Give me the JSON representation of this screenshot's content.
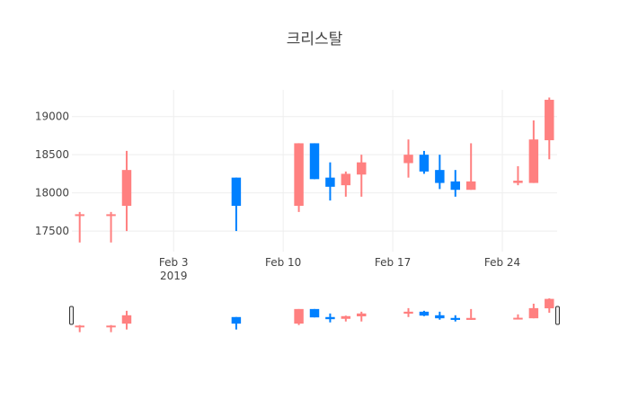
{
  "chart_data": {
    "type": "candlestick",
    "title": "크리스탈",
    "xlabel": "",
    "ylabel": "",
    "grid": true,
    "legend": "none",
    "x_ticks": [
      {
        "date": "2019-02-03",
        "label": "Feb 3",
        "sublabel": "2019"
      },
      {
        "date": "2019-02-10",
        "label": "Feb 10"
      },
      {
        "date": "2019-02-17",
        "label": "Feb 17"
      },
      {
        "date": "2019-02-24",
        "label": "Feb 24"
      }
    ],
    "y_ticks": [
      17500,
      18000,
      18500,
      19000
    ],
    "xlim": [
      "2019-01-27T12:00",
      "2019-02-27T12:00"
    ],
    "ylim": [
      17230,
      19350
    ],
    "increasing_color": "#ff8080",
    "decreasing_color": "#0080ff",
    "candles": [
      {
        "date": "2019-01-28",
        "open": 17700,
        "high": 17750,
        "low": 17350,
        "close": 17720
      },
      {
        "date": "2019-01-30",
        "open": 17700,
        "high": 17750,
        "low": 17350,
        "close": 17720
      },
      {
        "date": "2019-01-31",
        "open": 17830,
        "high": 18550,
        "low": 17500,
        "close": 18300
      },
      {
        "date": "2019-02-07",
        "open": 18200,
        "high": 18200,
        "low": 17500,
        "close": 17830
      },
      {
        "date": "2019-02-11",
        "open": 17830,
        "high": 18650,
        "low": 17750,
        "close": 18650
      },
      {
        "date": "2019-02-12",
        "open": 18650,
        "high": 18650,
        "low": 18180,
        "close": 18180
      },
      {
        "date": "2019-02-13",
        "open": 18200,
        "high": 18400,
        "low": 17900,
        "close": 18080
      },
      {
        "date": "2019-02-14",
        "open": 18100,
        "high": 18280,
        "low": 17950,
        "close": 18250
      },
      {
        "date": "2019-02-15",
        "open": 18240,
        "high": 18500,
        "low": 17950,
        "close": 18400
      },
      {
        "date": "2019-02-18",
        "open": 18390,
        "high": 18700,
        "low": 18200,
        "close": 18500
      },
      {
        "date": "2019-02-19",
        "open": 18500,
        "high": 18550,
        "low": 18250,
        "close": 18280
      },
      {
        "date": "2019-02-20",
        "open": 18300,
        "high": 18500,
        "low": 18050,
        "close": 18130
      },
      {
        "date": "2019-02-21",
        "open": 18150,
        "high": 18300,
        "low": 17950,
        "close": 18040
      },
      {
        "date": "2019-02-22",
        "open": 18040,
        "high": 18650,
        "low": 18040,
        "close": 18150
      },
      {
        "date": "2019-02-25",
        "open": 18130,
        "high": 18350,
        "low": 18100,
        "close": 18160
      },
      {
        "date": "2019-02-26",
        "open": 18130,
        "high": 18950,
        "low": 18130,
        "close": 18700
      },
      {
        "date": "2019-02-27",
        "open": 18690,
        "high": 19250,
        "low": 18440,
        "close": 19220
      }
    ]
  }
}
